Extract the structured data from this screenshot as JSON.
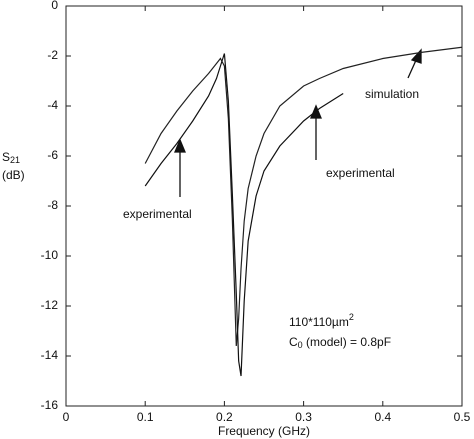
{
  "chart_data": {
    "type": "line",
    "x_label": "Frequency (GHz)",
    "y_label": {
      "text": "S",
      "sub": "21",
      "unit": "(dB)"
    },
    "note_1": {
      "text": "110*110µm",
      "sup": "2"
    },
    "note_2": {
      "text": "C",
      "sub": "0",
      "rest": " (model) = 0.8pF"
    },
    "x": [
      0.1,
      0.12,
      0.14,
      0.16,
      0.18,
      0.19,
      0.195,
      0.2,
      0.205,
      0.21,
      0.215,
      0.218,
      0.221,
      0.225,
      0.23,
      0.24,
      0.25,
      0.27,
      0.3,
      0.32,
      0.35,
      0.4,
      0.45,
      0.5
    ],
    "series": [
      {
        "name": "simulation",
        "color": "#222222",
        "values": [
          -6.3,
          -5.1,
          -4.2,
          -3.4,
          -2.7,
          -2.3,
          -2.1,
          -2.4,
          -4.5,
          -8.5,
          -13.6,
          -12.5,
          -10.5,
          -8.6,
          -7.3,
          -6.0,
          -5.1,
          -4.0,
          -3.2,
          -2.9,
          -2.5,
          -2.1,
          -1.85,
          -1.65
        ]
      },
      {
        "name": "experimental",
        "color": "#111111",
        "values": [
          -7.2,
          -6.3,
          -5.5,
          -4.6,
          -3.6,
          -2.9,
          -2.4,
          -1.9,
          -3.8,
          -7.5,
          -11.5,
          -14.2,
          -14.8,
          -11.8,
          -9.4,
          -7.6,
          -6.6,
          -5.6,
          -4.6,
          -4.1,
          -3.5,
          null,
          null,
          null
        ]
      }
    ],
    "xlim": [
      0,
      0.5
    ],
    "xticks": [
      0,
      0.1,
      0.2,
      0.3,
      0.4,
      0.5
    ],
    "ylim": [
      -16,
      0
    ],
    "yticks": [
      -16,
      -14,
      -12,
      -10,
      -8,
      -6,
      -4,
      -2,
      0
    ]
  }
}
